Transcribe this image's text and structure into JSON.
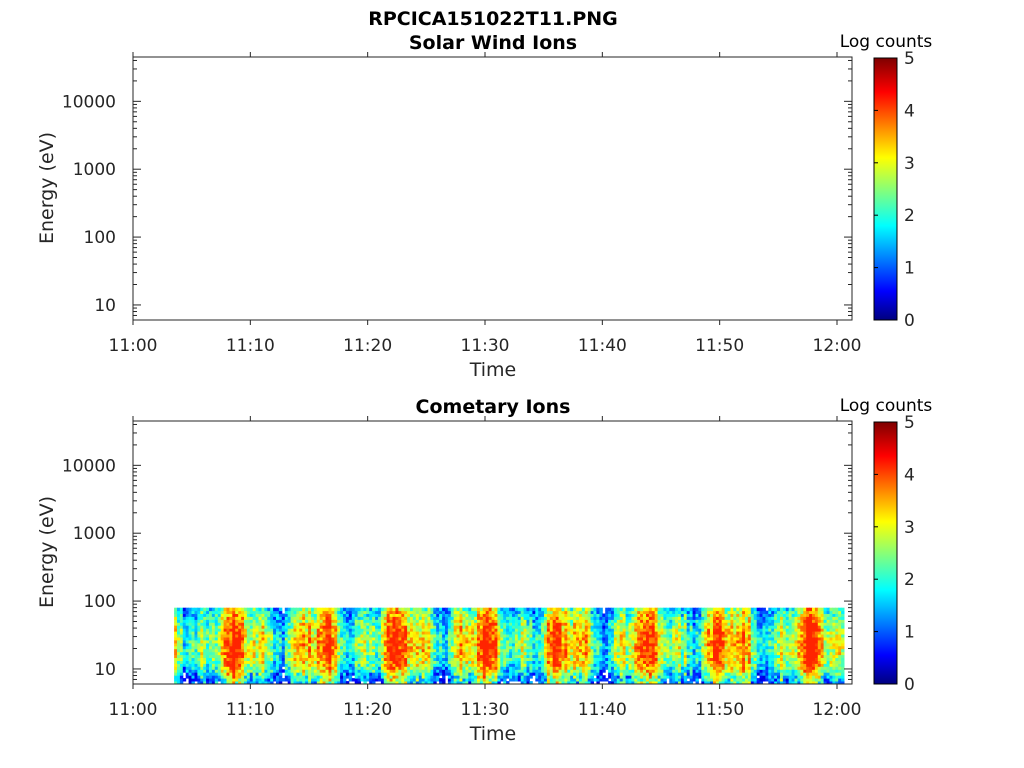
{
  "figure_title": "RPCICA151022T11.PNG",
  "chart_data": [
    {
      "type": "heatmap",
      "title": "Solar Wind Ions",
      "xlabel": "Time",
      "ylabel": "Energy (eV)",
      "x_ticks": [
        "11:00",
        "11:10",
        "11:20",
        "11:30",
        "11:40",
        "11:50",
        "12:00"
      ],
      "y_scale": "log",
      "y_ticks": [
        "10",
        "100",
        "1000",
        "10000"
      ],
      "ylim": [
        6,
        45000
      ],
      "colorbar": {
        "label": "Log counts",
        "ticks": [
          "0",
          "1",
          "2",
          "3",
          "4",
          "5"
        ],
        "range": [
          0,
          5
        ],
        "colormap": "jet"
      },
      "data": {
        "coverage": "empty"
      }
    },
    {
      "type": "heatmap",
      "title": "Cometary Ions",
      "xlabel": "Time",
      "ylabel": "Energy (eV)",
      "x_ticks": [
        "11:00",
        "11:10",
        "11:20",
        "11:30",
        "11:40",
        "11:50",
        "12:00"
      ],
      "y_scale": "log",
      "y_ticks": [
        "10",
        "100",
        "1000",
        "10000"
      ],
      "ylim": [
        6,
        45000
      ],
      "colorbar": {
        "label": "Log counts",
        "ticks": [
          "0",
          "1",
          "2",
          "3",
          "4",
          "5"
        ],
        "range": [
          0,
          5
        ],
        "colormap": "jet"
      },
      "data": {
        "time_start_min": 3.5,
        "time_end_min": 60.6,
        "energy_min_eV": 6,
        "energy_max_eV": 80,
        "typical_log_counts": [
          1,
          3.5
        ],
        "peak_log_counts": 4.2
      }
    }
  ]
}
